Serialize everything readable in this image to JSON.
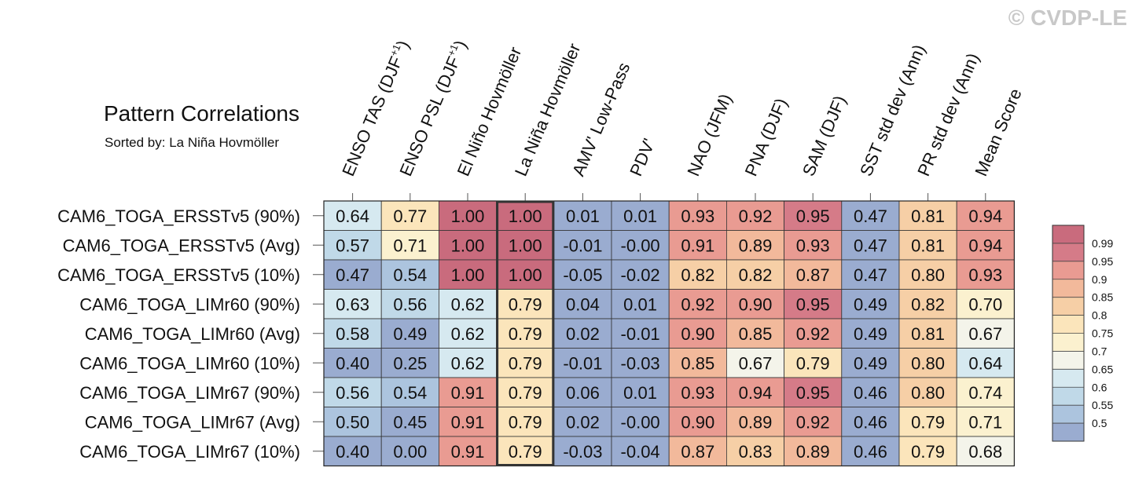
{
  "chart_data": {
    "type": "heatmap",
    "title": "Pattern Correlations",
    "subtitle": "Sorted by: La Niña Hovmöller",
    "watermark": "© CVDP-LE",
    "highlight_column": "La Niña Hovmöller",
    "columns": [
      "ENSO TAS (DJF+1)",
      "ENSO PSL (DJF+1)",
      "El Niño Hovmöller",
      "La Niña Hovmöller",
      "AMV' Low-Pass",
      "PDV'",
      "NAO (JFM)",
      "PNA (DJF)",
      "SAM (DJF)",
      "SST std dev (Ann)",
      "PR std dev (Ann)",
      "Mean Score"
    ],
    "rows": [
      {
        "name": "CAM6_TOGA_ERSSTv5 (90%)",
        "values": [
          "0.64",
          "0.77",
          "1.00",
          "1.00",
          "0.01",
          "0.01",
          "0.93",
          "0.92",
          "0.95",
          "0.47",
          "0.81",
          "0.94"
        ]
      },
      {
        "name": "CAM6_TOGA_ERSSTv5 (Avg)",
        "values": [
          "0.57",
          "0.71",
          "1.00",
          "1.00",
          "-0.01",
          "-0.00",
          "0.91",
          "0.89",
          "0.93",
          "0.47",
          "0.81",
          "0.94"
        ]
      },
      {
        "name": "CAM6_TOGA_ERSSTv5 (10%)",
        "values": [
          "0.47",
          "0.54",
          "1.00",
          "1.00",
          "-0.05",
          "-0.02",
          "0.82",
          "0.82",
          "0.87",
          "0.47",
          "0.80",
          "0.93"
        ]
      },
      {
        "name": "CAM6_TOGA_LIMr60 (90%)",
        "values": [
          "0.63",
          "0.56",
          "0.62",
          "0.79",
          "0.04",
          "0.01",
          "0.92",
          "0.90",
          "0.95",
          "0.49",
          "0.82",
          "0.70"
        ]
      },
      {
        "name": "CAM6_TOGA_LIMr60 (Avg)",
        "values": [
          "0.58",
          "0.49",
          "0.62",
          "0.79",
          "0.02",
          "-0.01",
          "0.90",
          "0.85",
          "0.92",
          "0.49",
          "0.81",
          "0.67"
        ]
      },
      {
        "name": "CAM6_TOGA_LIMr60 (10%)",
        "values": [
          "0.40",
          "0.25",
          "0.62",
          "0.79",
          "-0.01",
          "-0.03",
          "0.85",
          "0.67",
          "0.79",
          "0.49",
          "0.80",
          "0.64"
        ]
      },
      {
        "name": "CAM6_TOGA_LIMr67 (90%)",
        "values": [
          "0.56",
          "0.54",
          "0.91",
          "0.79",
          "0.06",
          "0.01",
          "0.93",
          "0.94",
          "0.95",
          "0.46",
          "0.80",
          "0.74"
        ]
      },
      {
        "name": "CAM6_TOGA_LIMr67 (Avg)",
        "values": [
          "0.50",
          "0.45",
          "0.91",
          "0.79",
          "0.02",
          "-0.00",
          "0.90",
          "0.89",
          "0.92",
          "0.46",
          "0.79",
          "0.71"
        ]
      },
      {
        "name": "CAM6_TOGA_LIMr67 (10%)",
        "values": [
          "0.40",
          "0.00",
          "0.91",
          "0.79",
          "-0.03",
          "-0.04",
          "0.87",
          "0.83",
          "0.89",
          "0.46",
          "0.79",
          "0.68"
        ]
      }
    ],
    "legend": {
      "labels": [
        "0.99",
        "0.95",
        "0.9",
        "0.85",
        "0.8",
        "0.75",
        "0.7",
        "0.65",
        "0.6",
        "0.55",
        "0.5"
      ],
      "thresholds": [
        0.5,
        0.55,
        0.6,
        0.65,
        0.7,
        0.75,
        0.8,
        0.85,
        0.9,
        0.95,
        0.99
      ],
      "colors": [
        "#9aacd0",
        "#acc4de",
        "#c0d9e8",
        "#d6e9f0",
        "#f4f4ea",
        "#fbf1cf",
        "#fbe5bb",
        "#f6cfa6",
        "#f2b99b",
        "#e99b92",
        "#d57b88",
        "#c96b7d"
      ],
      "placement": "right"
    }
  }
}
